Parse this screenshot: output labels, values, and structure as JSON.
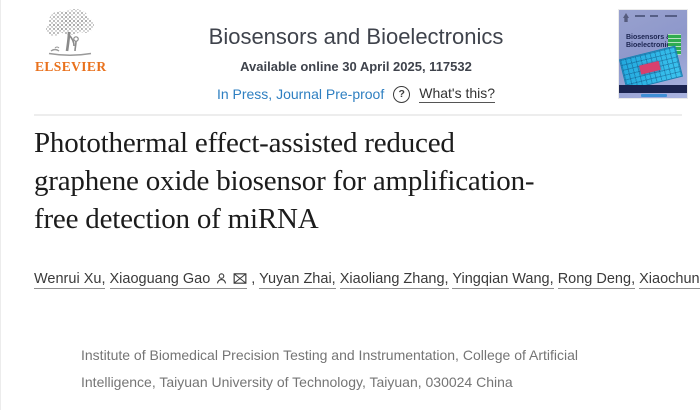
{
  "header": {
    "publisher": "ELSEVIER",
    "journal_title": "Biosensors and Bioelectronics",
    "availability": "Available online 30 April 2025, 117532",
    "status_link": "In Press, Journal Pre-proof",
    "help_icon_glyph": "?",
    "whats_this_link": "What's this?"
  },
  "cover": {
    "title_line1": "Biosensors &",
    "title_line2": "Bioelectronics"
  },
  "article": {
    "title_full": "Photothermal effect-assisted reduced graphene oxide biosensor for amplification-free detection of miRNA",
    "title_lines": [
      "Photothermal effect-assisted reduced",
      "graphene oxide biosensor for amplification-",
      "free detection of miRNA"
    ],
    "authors": [
      {
        "name": "Wenrui Xu",
        "corresponding": false
      },
      {
        "name": "Xiaoguang Gao",
        "corresponding": true
      },
      {
        "name": "Yuyan Zhai",
        "corresponding": false
      },
      {
        "name": "Xiaoliang Zhang",
        "corresponding": false
      },
      {
        "name": "Yingqian Wang",
        "corresponding": false
      },
      {
        "name": "Rong Deng",
        "corresponding": false
      },
      {
        "name": "Xiaochun Li",
        "corresponding": true
      }
    ],
    "affiliation_lines": [
      "Institute of Biomedical Precision Testing and Instrumentation, College of Artificial",
      "Intelligence, Taiyuan University of Technology, Taiyuan, 030024 China"
    ]
  },
  "colors": {
    "orange": "#e9711c",
    "header_text": "#3f434c",
    "link_blue": "#2e7fc1",
    "title_text": "#1c1c1c",
    "author_text": "#3a3a3a",
    "muted_gray": "#757575",
    "divider": "#ededed",
    "cover_navy": "#1b2450",
    "cover_green": "#2fac4f",
    "cover_cyan": "#3cc4ef",
    "cover_red": "#d8406e",
    "cover_bg1": "#98a1ce",
    "cover_bg2": "#aab4e0"
  }
}
